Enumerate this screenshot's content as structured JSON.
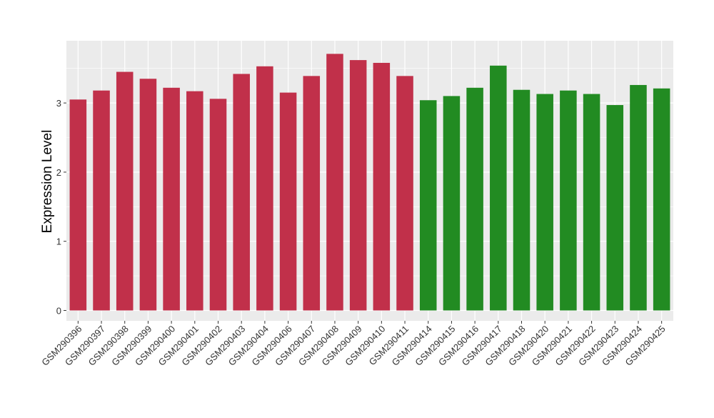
{
  "chart_data": {
    "type": "bar",
    "ylabel": "Expression Level",
    "xlabel": "",
    "ylim": [
      -0.15,
      3.9
    ],
    "yticks": [
      0,
      1,
      2,
      3
    ],
    "grid": true,
    "legend": "none",
    "categories": [
      "GSM290396",
      "GSM290397",
      "GSM290398",
      "GSM290399",
      "GSM290400",
      "GSM290401",
      "GSM290402",
      "GSM290403",
      "GSM290404",
      "GSM290406",
      "GSM290407",
      "GSM290408",
      "GSM290409",
      "GSM290410",
      "GSM290411",
      "GSM290414",
      "GSM290415",
      "GSM290416",
      "GSM290417",
      "GSM290418",
      "GSM290420",
      "GSM290421",
      "GSM290422",
      "GSM290423",
      "GSM290424",
      "GSM290425"
    ],
    "values": [
      3.05,
      3.18,
      3.45,
      3.35,
      3.22,
      3.17,
      3.06,
      3.42,
      3.53,
      3.15,
      3.39,
      3.71,
      3.62,
      3.58,
      3.39,
      3.04,
      3.1,
      3.22,
      3.54,
      3.19,
      3.13,
      3.18,
      3.13,
      2.97,
      3.26,
      3.21
    ],
    "bar_colors": [
      "#c1304a",
      "#c1304a",
      "#c1304a",
      "#c1304a",
      "#c1304a",
      "#c1304a",
      "#c1304a",
      "#c1304a",
      "#c1304a",
      "#c1304a",
      "#c1304a",
      "#c1304a",
      "#c1304a",
      "#c1304a",
      "#c1304a",
      "#228b22",
      "#228b22",
      "#228b22",
      "#228b22",
      "#228b22",
      "#228b22",
      "#228b22",
      "#228b22",
      "#228b22",
      "#228b22",
      "#228b22"
    ],
    "panel_background": "#ebebeb",
    "grid_color": "#ffffff"
  }
}
